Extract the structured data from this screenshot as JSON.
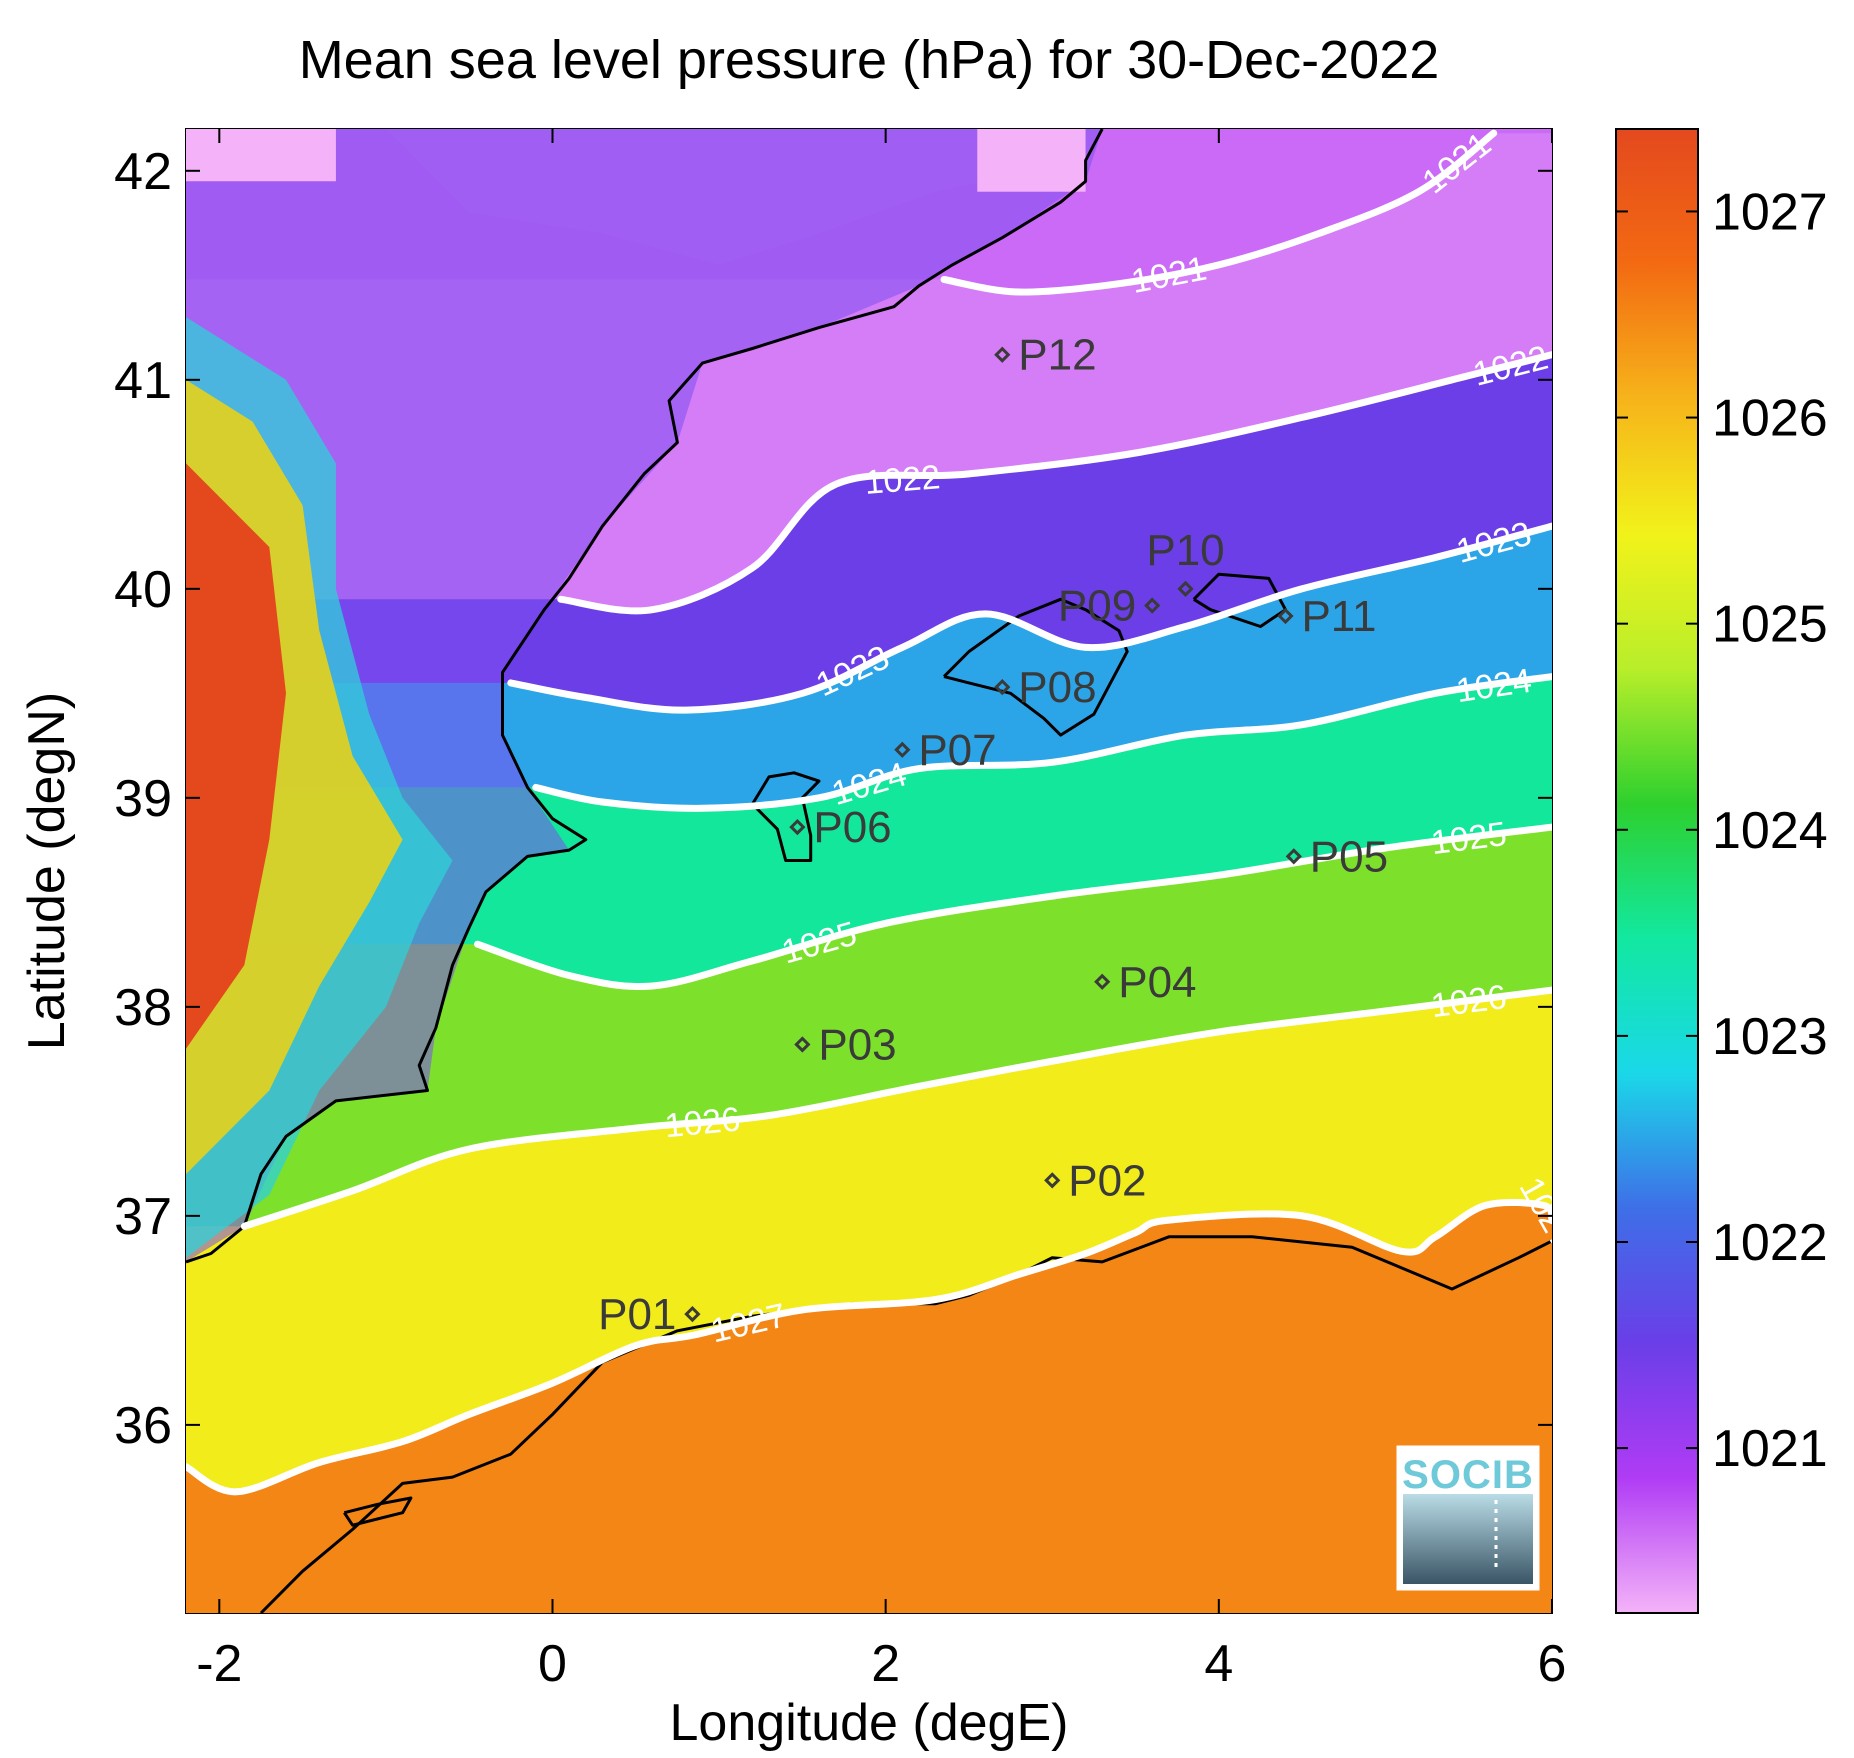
{
  "title": "Mean sea level pressure (hPa) for 30-Dec-2022",
  "logo": {
    "text": "SOCIB"
  },
  "chart_data": {
    "type": "heatmap",
    "map_type": "filled contour map of mean sea level pressure with isobars",
    "title": "Mean sea level pressure (hPa) for 30-Dec-2022",
    "xlabel": "Longitude (degE)",
    "ylabel": "Latitude (degN)",
    "xlim": [
      -2.2,
      6.0
    ],
    "ylim": [
      35.1,
      42.2
    ],
    "xticks": [
      -2,
      0,
      2,
      4,
      6
    ],
    "yticks": [
      36,
      37,
      38,
      39,
      40,
      41,
      42
    ],
    "colorbar": {
      "ticks": [
        1021,
        1022,
        1023,
        1024,
        1025,
        1026,
        1027
      ],
      "range": [
        1020.2,
        1027.4
      ],
      "colors": [
        "#f4b3f8",
        "#b03cf5",
        "#6a3ee8",
        "#3e6fe8",
        "#1ad8e8",
        "#12e8a0",
        "#2ed02e",
        "#b8ee2a",
        "#f2f21a",
        "#f6b41a",
        "#f36a12",
        "#e4491e"
      ]
    },
    "isobars": [
      {
        "label": "1021",
        "points": [
          [
            2.35,
            41.48
          ],
          [
            2.8,
            41.42
          ],
          [
            3.4,
            41.46
          ],
          [
            4.0,
            41.55
          ],
          [
            4.6,
            41.7
          ],
          [
            5.2,
            41.9
          ],
          [
            5.65,
            42.18
          ]
        ]
      },
      {
        "label": "1022",
        "points": [
          [
            0.05,
            39.95
          ],
          [
            0.6,
            39.9
          ],
          [
            1.2,
            40.1
          ],
          [
            1.7,
            40.5
          ],
          [
            2.5,
            40.55
          ],
          [
            3.5,
            40.65
          ],
          [
            4.5,
            40.82
          ],
          [
            5.5,
            41.02
          ],
          [
            6.0,
            41.12
          ]
        ]
      },
      {
        "label": "1023",
        "points": [
          [
            -0.25,
            39.55
          ],
          [
            0.2,
            39.48
          ],
          [
            0.8,
            39.42
          ],
          [
            1.5,
            39.5
          ],
          [
            2.1,
            39.72
          ],
          [
            2.6,
            39.88
          ],
          [
            3.2,
            39.72
          ],
          [
            3.8,
            39.82
          ],
          [
            4.5,
            40.0
          ],
          [
            5.3,
            40.15
          ],
          [
            6.0,
            40.3
          ]
        ]
      },
      {
        "label": "1024",
        "points": [
          [
            -0.1,
            39.05
          ],
          [
            0.3,
            38.98
          ],
          [
            0.9,
            38.95
          ],
          [
            1.6,
            39.0
          ],
          [
            2.2,
            39.14
          ],
          [
            3.0,
            39.17
          ],
          [
            3.8,
            39.3
          ],
          [
            4.5,
            39.35
          ],
          [
            5.3,
            39.5
          ],
          [
            6.0,
            39.58
          ]
        ]
      },
      {
        "label": "1025",
        "points": [
          [
            -0.45,
            38.3
          ],
          [
            0.1,
            38.15
          ],
          [
            0.6,
            38.1
          ],
          [
            1.2,
            38.22
          ],
          [
            2.0,
            38.4
          ],
          [
            3.0,
            38.53
          ],
          [
            4.0,
            38.63
          ],
          [
            5.0,
            38.76
          ],
          [
            6.0,
            38.86
          ]
        ]
      },
      {
        "label": "1026",
        "points": [
          [
            -1.85,
            36.95
          ],
          [
            -1.2,
            37.12
          ],
          [
            -0.5,
            37.32
          ],
          [
            0.5,
            37.42
          ],
          [
            1.3,
            37.48
          ],
          [
            2.2,
            37.62
          ],
          [
            3.0,
            37.74
          ],
          [
            4.0,
            37.88
          ],
          [
            5.0,
            37.98
          ],
          [
            6.0,
            38.08
          ]
        ]
      },
      {
        "label": "1027",
        "points": [
          [
            -2.2,
            35.8
          ],
          [
            -1.9,
            35.68
          ],
          [
            -1.4,
            35.82
          ],
          [
            -0.9,
            35.92
          ],
          [
            -0.5,
            36.05
          ],
          [
            0.0,
            36.2
          ],
          [
            0.5,
            36.38
          ],
          [
            0.85,
            36.43
          ],
          [
            1.5,
            36.55
          ],
          [
            2.3,
            36.6
          ],
          [
            2.8,
            36.72
          ],
          [
            3.2,
            36.82
          ],
          [
            3.5,
            36.92
          ],
          [
            3.7,
            36.98
          ],
          [
            4.5,
            37.0
          ],
          [
            5.1,
            36.83
          ],
          [
            5.3,
            36.9
          ],
          [
            5.6,
            37.05
          ],
          [
            5.95,
            37.05
          ],
          [
            6.0,
            36.98
          ]
        ]
      }
    ],
    "stations": [
      {
        "name": "P01",
        "lon": 0.84,
        "lat": 36.53,
        "label_side": "left"
      },
      {
        "name": "P02",
        "lon": 3.0,
        "lat": 37.17,
        "label_side": "right"
      },
      {
        "name": "P03",
        "lon": 1.5,
        "lat": 37.82,
        "label_side": "right"
      },
      {
        "name": "P04",
        "lon": 3.3,
        "lat": 38.12,
        "label_side": "right"
      },
      {
        "name": "P05",
        "lon": 4.45,
        "lat": 38.72,
        "label_side": "right"
      },
      {
        "name": "P06",
        "lon": 1.47,
        "lat": 38.86,
        "label_side": "right"
      },
      {
        "name": "P07",
        "lon": 2.1,
        "lat": 39.23,
        "label_side": "right"
      },
      {
        "name": "P08",
        "lon": 2.7,
        "lat": 39.53,
        "label_side": "right"
      },
      {
        "name": "P09",
        "lon": 3.6,
        "lat": 39.92,
        "label_side": "left"
      },
      {
        "name": "P10",
        "lon": 3.8,
        "lat": 40.0,
        "label_side": "above"
      },
      {
        "name": "P11",
        "lon": 4.4,
        "lat": 39.87,
        "label_side": "right"
      },
      {
        "name": "P12",
        "lon": 2.7,
        "lat": 41.12,
        "label_side": "right"
      }
    ],
    "coastlines": [
      {
        "name": "iberian-coast",
        "points": [
          [
            -2.2,
            36.78
          ],
          [
            -2.05,
            36.82
          ],
          [
            -1.85,
            36.95
          ],
          [
            -1.75,
            37.2
          ],
          [
            -1.6,
            37.38
          ],
          [
            -1.3,
            37.55
          ],
          [
            -0.75,
            37.6
          ],
          [
            -0.8,
            37.72
          ],
          [
            -0.7,
            37.9
          ],
          [
            -0.6,
            38.2
          ],
          [
            -0.5,
            38.38
          ],
          [
            -0.4,
            38.55
          ],
          [
            -0.15,
            38.72
          ],
          [
            0.1,
            38.75
          ],
          [
            0.2,
            38.8
          ],
          [
            0.0,
            38.9
          ],
          [
            -0.15,
            39.05
          ],
          [
            -0.3,
            39.3
          ],
          [
            -0.3,
            39.6
          ],
          [
            -0.05,
            39.9
          ],
          [
            0.1,
            40.05
          ],
          [
            0.3,
            40.3
          ],
          [
            0.55,
            40.55
          ],
          [
            0.75,
            40.7
          ],
          [
            0.7,
            40.9
          ],
          [
            0.9,
            41.08
          ],
          [
            1.2,
            41.15
          ],
          [
            1.6,
            41.25
          ],
          [
            2.05,
            41.35
          ],
          [
            2.2,
            41.45
          ],
          [
            2.4,
            41.55
          ],
          [
            2.7,
            41.68
          ],
          [
            3.05,
            41.85
          ],
          [
            3.2,
            41.95
          ],
          [
            3.2,
            42.05
          ],
          [
            3.3,
            42.2
          ]
        ]
      },
      {
        "name": "african-coast",
        "points": [
          [
            -1.75,
            35.1
          ],
          [
            -1.5,
            35.3
          ],
          [
            -1.2,
            35.5
          ],
          [
            -0.9,
            35.72
          ],
          [
            -0.6,
            35.75
          ],
          [
            -0.25,
            35.86
          ],
          [
            0.0,
            36.05
          ],
          [
            0.3,
            36.3
          ],
          [
            0.75,
            36.45
          ],
          [
            1.2,
            36.52
          ],
          [
            1.8,
            36.58
          ],
          [
            2.3,
            36.58
          ],
          [
            2.5,
            36.62
          ],
          [
            2.8,
            36.72
          ],
          [
            3.0,
            36.8
          ],
          [
            3.3,
            36.78
          ],
          [
            3.7,
            36.9
          ],
          [
            4.2,
            36.9
          ],
          [
            4.8,
            36.85
          ],
          [
            5.1,
            36.75
          ],
          [
            5.4,
            36.65
          ],
          [
            5.8,
            36.8
          ],
          [
            6.0,
            36.88
          ]
        ]
      },
      {
        "name": "alboran-island",
        "points": [
          [
            -1.25,
            35.58
          ],
          [
            -1.05,
            35.62
          ],
          [
            -0.85,
            35.65
          ],
          [
            -0.9,
            35.58
          ],
          [
            -1.2,
            35.52
          ],
          [
            -1.25,
            35.58
          ]
        ]
      },
      {
        "name": "ibiza",
        "points": [
          [
            1.2,
            38.97
          ],
          [
            1.3,
            39.1
          ],
          [
            1.45,
            39.12
          ],
          [
            1.6,
            39.08
          ],
          [
            1.5,
            39.0
          ],
          [
            1.55,
            38.82
          ],
          [
            1.55,
            38.7
          ],
          [
            1.4,
            38.7
          ],
          [
            1.35,
            38.85
          ],
          [
            1.2,
            38.97
          ]
        ]
      },
      {
        "name": "mallorca",
        "points": [
          [
            2.35,
            39.58
          ],
          [
            2.5,
            39.7
          ],
          [
            2.8,
            39.87
          ],
          [
            3.05,
            39.95
          ],
          [
            3.2,
            39.9
          ],
          [
            3.4,
            39.8
          ],
          [
            3.45,
            39.7
          ],
          [
            3.25,
            39.4
          ],
          [
            3.05,
            39.3
          ],
          [
            2.95,
            39.38
          ],
          [
            2.75,
            39.5
          ],
          [
            2.5,
            39.55
          ],
          [
            2.35,
            39.58
          ]
        ]
      },
      {
        "name": "menorca",
        "points": [
          [
            3.85,
            39.95
          ],
          [
            4.0,
            40.07
          ],
          [
            4.3,
            40.05
          ],
          [
            4.4,
            39.9
          ],
          [
            4.25,
            39.82
          ],
          [
            3.95,
            39.9
          ],
          [
            3.85,
            39.95
          ]
        ]
      }
    ]
  }
}
